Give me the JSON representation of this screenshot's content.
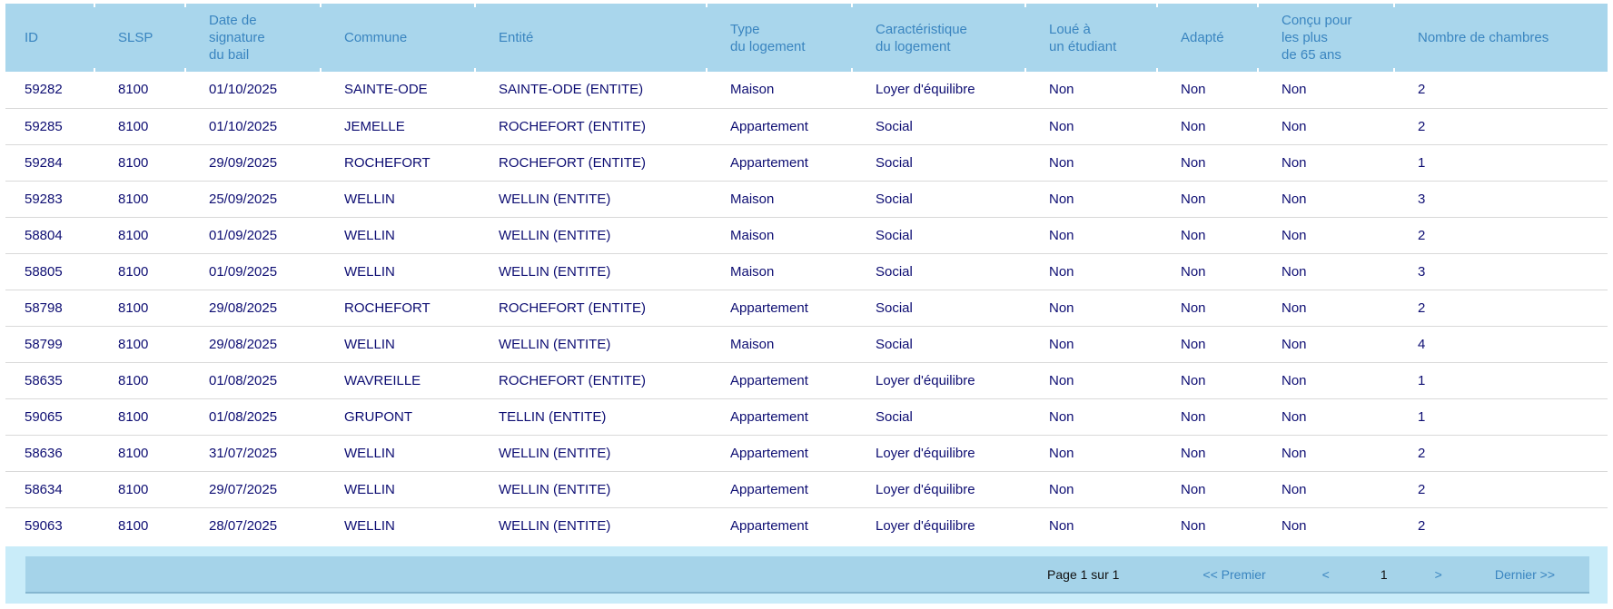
{
  "table": {
    "columns": [
      {
        "label": "ID"
      },
      {
        "label": "SLSP"
      },
      {
        "label": "Date de\nsignature\ndu bail"
      },
      {
        "label": "Commune"
      },
      {
        "label": "Entité"
      },
      {
        "label": "Type\ndu logement"
      },
      {
        "label": "Caractéristique\ndu logement"
      },
      {
        "label": "Loué à\nun étudiant"
      },
      {
        "label": "Adapté"
      },
      {
        "label": "Conçu pour\nles plus\nde 65 ans"
      },
      {
        "label": "Nombre de chambres"
      }
    ],
    "rows": [
      [
        "59282",
        "8100",
        "01/10/2025",
        "SAINTE-ODE",
        "SAINTE-ODE (ENTITE)",
        "Maison",
        "Loyer d'équilibre",
        "Non",
        "Non",
        "Non",
        "2"
      ],
      [
        "59285",
        "8100",
        "01/10/2025",
        "JEMELLE",
        "ROCHEFORT (ENTITE)",
        "Appartement",
        "Social",
        "Non",
        "Non",
        "Non",
        "2"
      ],
      [
        "59284",
        "8100",
        "29/09/2025",
        "ROCHEFORT",
        "ROCHEFORT (ENTITE)",
        "Appartement",
        "Social",
        "Non",
        "Non",
        "Non",
        "1"
      ],
      [
        "59283",
        "8100",
        "25/09/2025",
        "WELLIN",
        "WELLIN (ENTITE)",
        "Maison",
        "Social",
        "Non",
        "Non",
        "Non",
        "3"
      ],
      [
        "58804",
        "8100",
        "01/09/2025",
        "WELLIN",
        "WELLIN (ENTITE)",
        "Maison",
        "Social",
        "Non",
        "Non",
        "Non",
        "2"
      ],
      [
        "58805",
        "8100",
        "01/09/2025",
        "WELLIN",
        "WELLIN (ENTITE)",
        "Maison",
        "Social",
        "Non",
        "Non",
        "Non",
        "3"
      ],
      [
        "58798",
        "8100",
        "29/08/2025",
        "ROCHEFORT",
        "ROCHEFORT (ENTITE)",
        "Appartement",
        "Social",
        "Non",
        "Non",
        "Non",
        "2"
      ],
      [
        "58799",
        "8100",
        "29/08/2025",
        "WELLIN",
        "WELLIN (ENTITE)",
        "Maison",
        "Social",
        "Non",
        "Non",
        "Non",
        "4"
      ],
      [
        "58635",
        "8100",
        "01/08/2025",
        "WAVREILLE",
        "ROCHEFORT (ENTITE)",
        "Appartement",
        "Loyer d'équilibre",
        "Non",
        "Non",
        "Non",
        "1"
      ],
      [
        "59065",
        "8100",
        "01/08/2025",
        "GRUPONT",
        "TELLIN (ENTITE)",
        "Appartement",
        "Social",
        "Non",
        "Non",
        "Non",
        "1"
      ],
      [
        "58636",
        "8100",
        "31/07/2025",
        "WELLIN",
        "WELLIN (ENTITE)",
        "Appartement",
        "Loyer d'équilibre",
        "Non",
        "Non",
        "Non",
        "2"
      ],
      [
        "58634",
        "8100",
        "29/07/2025",
        "WELLIN",
        "WELLIN (ENTITE)",
        "Appartement",
        "Loyer d'équilibre",
        "Non",
        "Non",
        "Non",
        "2"
      ],
      [
        "59063",
        "8100",
        "28/07/2025",
        "WELLIN",
        "WELLIN (ENTITE)",
        "Appartement",
        "Loyer d'équilibre",
        "Non",
        "Non",
        "Non",
        "2"
      ]
    ]
  },
  "pagination": {
    "page_info": "Page 1 sur 1",
    "first_label": "<< Premier",
    "prev_label": "<",
    "current_page": "1",
    "next_label": ">",
    "last_label": "Dernier >>"
  },
  "colors": {
    "header_bg": "#a9d6ec",
    "header_text": "#3a85c0",
    "body_text": "#0d0d72",
    "row_divider": "#d9d9d9",
    "footer_bg": "#c9ecf9",
    "pager_bg": "#a5d3e9",
    "pager_border": "#85b6d0",
    "link": "#3a85c0",
    "dark_text": "#111111"
  }
}
